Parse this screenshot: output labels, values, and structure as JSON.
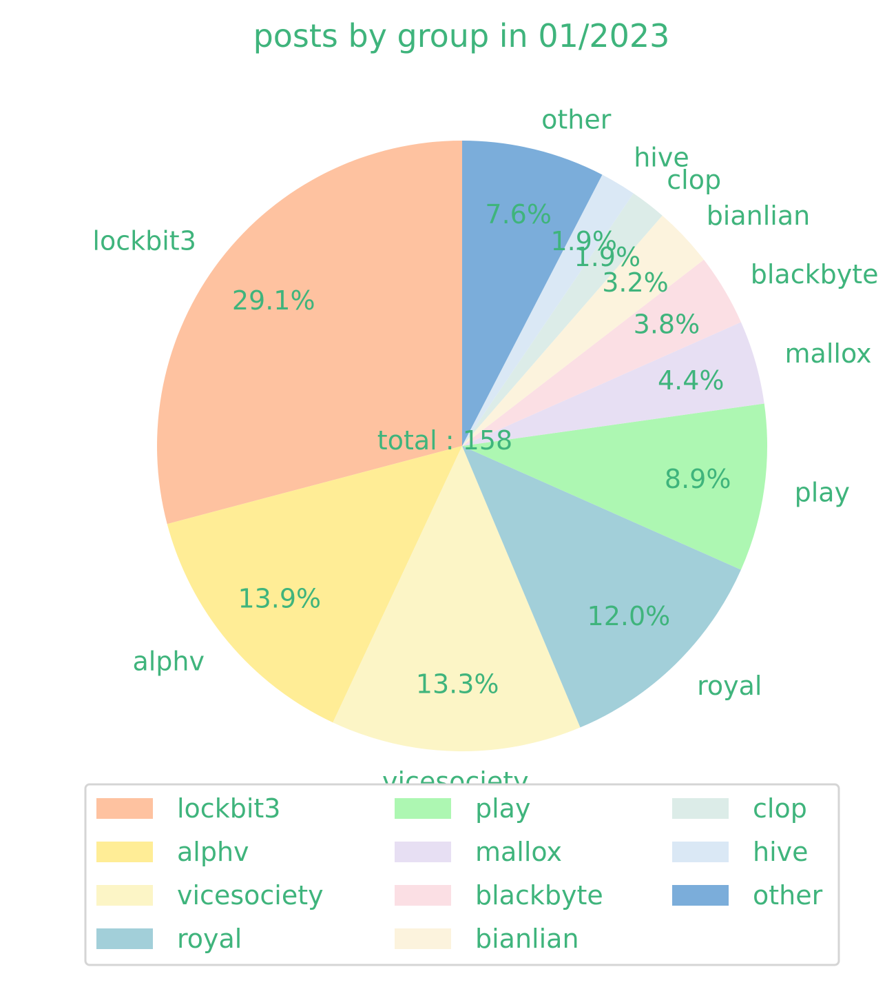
{
  "chart_data": {
    "type": "pie",
    "title": "posts by group in 01/2023",
    "center_label": "total : 158",
    "total": 158,
    "start_angle_deg": 90,
    "direction": "counterclockwise",
    "legend_placement": "bottom",
    "legend_columns": 3,
    "text_color": "#3fb47c",
    "slices": [
      {
        "label": "lockbit3",
        "value": 46,
        "pct_label": "29.1%",
        "color": "#fec2a0"
      },
      {
        "label": "alphv",
        "value": 22,
        "pct_label": "13.9%",
        "color": "#ffed96"
      },
      {
        "label": "vicesociety",
        "value": 21,
        "pct_label": "13.3%",
        "color": "#fcf5c6"
      },
      {
        "label": "royal",
        "value": 19,
        "pct_label": "12.0%",
        "color": "#a2cfd9"
      },
      {
        "label": "play",
        "value": 14,
        "pct_label": "8.9%",
        "color": "#adf7b2"
      },
      {
        "label": "mallox",
        "value": 7,
        "pct_label": "4.4%",
        "color": "#e7dff3"
      },
      {
        "label": "blackbyte",
        "value": 6,
        "pct_label": "3.8%",
        "color": "#fbdfe4"
      },
      {
        "label": "bianlian",
        "value": 5,
        "pct_label": "3.2%",
        "color": "#fcf3dd"
      },
      {
        "label": "clop",
        "value": 3,
        "pct_label": "1.9%",
        "color": "#dcece8"
      },
      {
        "label": "hive",
        "value": 3,
        "pct_label": "1.9%",
        "color": "#dae8f5"
      },
      {
        "label": "other",
        "value": 12,
        "pct_label": "7.6%",
        "color": "#7badda"
      }
    ]
  }
}
